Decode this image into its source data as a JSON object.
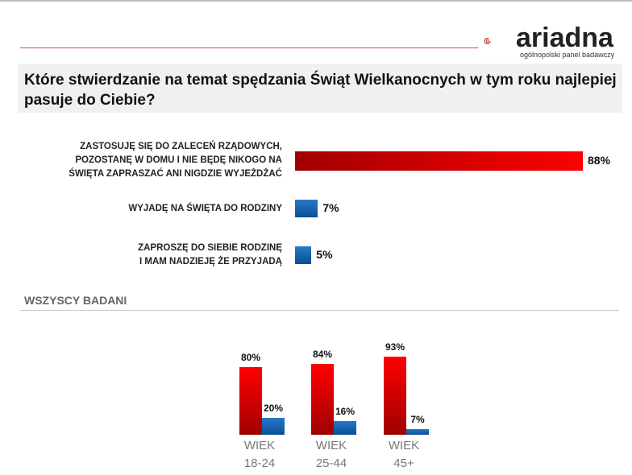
{
  "logo": {
    "name": "ariadna",
    "tagline": "ogólnopolski panel badawczy"
  },
  "question": "Które stwierdzanie na temat spędzania Świąt Wielkanocnych w tym roku najlepiej pasuje do Ciebie?",
  "section_label": "WSZYSCY BADANI",
  "colors": {
    "red": "#e00000",
    "blue": "#1a62b0"
  },
  "chart_data": [
    {
      "type": "bar",
      "orientation": "horizontal",
      "xlim": [
        0,
        100
      ],
      "categories": [
        "ZASTOSUJĘ SIĘ DO ZALECEŃ RZĄDOWYCH,\nPOZOSTANĘ W DOMU I NIE BĘDĘ NIKOGO NA\nŚWIĘTA ZAPRASZAĆ ANI NIGDZIE WYJEŻDŻAĆ",
        "WYJADĘ NA ŚWIĘTA DO RODZINY",
        "ZAPROSZĘ DO SIEBIE RODZINĘ\nI MAM NADZIEJĘ ŻE PRZYJADĄ"
      ],
      "values": [
        88,
        7,
        5
      ],
      "labels": [
        "88%",
        "7%",
        "5%"
      ],
      "colors": [
        "red",
        "blue",
        "blue"
      ]
    },
    {
      "type": "bar",
      "orientation": "vertical",
      "ylim": [
        0,
        100
      ],
      "categories": [
        "WIEK\n18-24",
        "WIEK\n25-44",
        "WIEK\n45+"
      ],
      "series": [
        {
          "values": [
            80,
            84,
            93
          ],
          "labels": [
            "80%",
            "84%",
            "93%"
          ],
          "color": "red"
        },
        {
          "values": [
            20,
            16,
            7
          ],
          "labels": [
            "20%",
            "16%",
            "7%"
          ],
          "color": "blue"
        }
      ]
    }
  ]
}
